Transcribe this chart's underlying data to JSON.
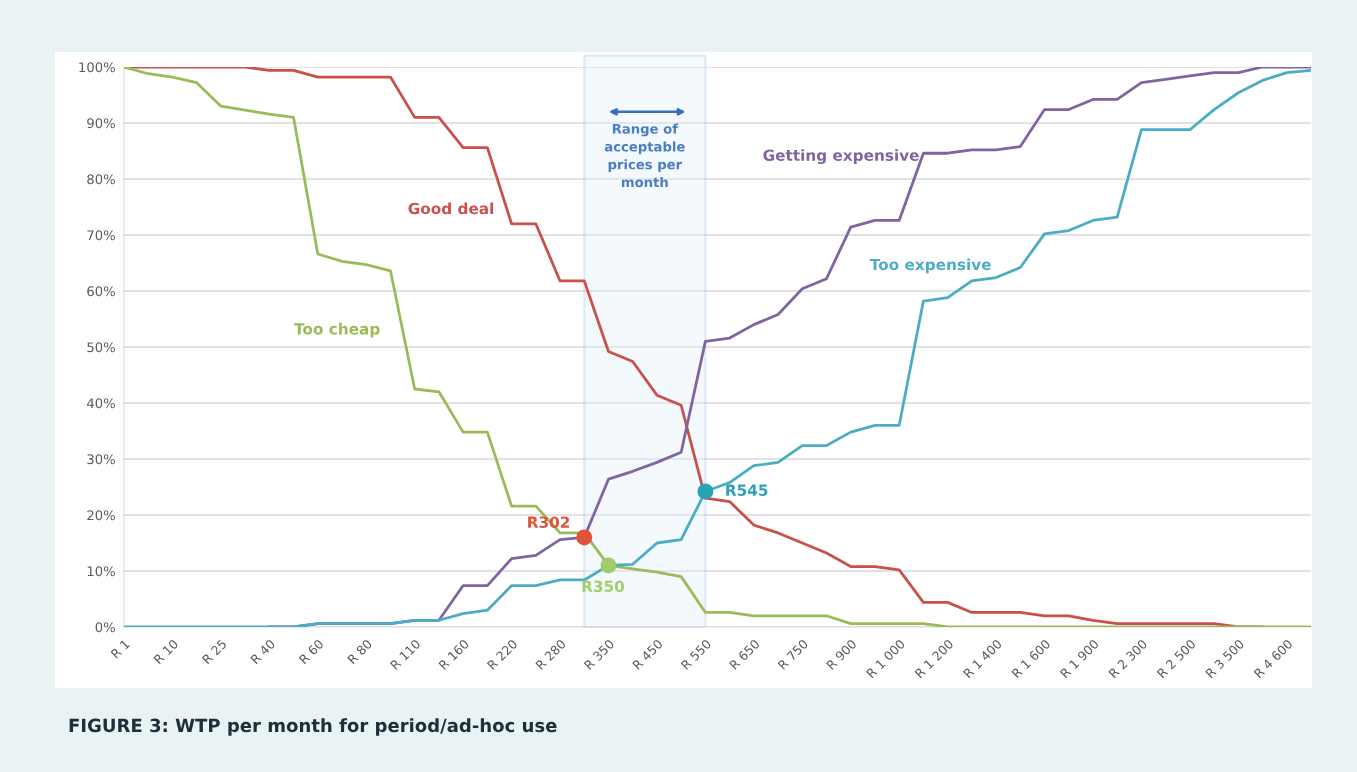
{
  "chart_data": {
    "type": "line",
    "title": "FIGURE 3: WTP per month for period/ad-hoc use",
    "categories": [
      "R 1",
      null,
      "R 10",
      null,
      "R 25",
      null,
      "R 40",
      null,
      "R 60",
      null,
      "R 80",
      null,
      "R 110",
      null,
      "R 160",
      null,
      "R 220",
      null,
      "R 280",
      null,
      "R 350",
      null,
      "R 450",
      null,
      "R 550",
      null,
      "R 650",
      null,
      "R 750",
      null,
      "R 900",
      null,
      "R 1 000",
      null,
      "R 1 200",
      null,
      "R 1 400",
      null,
      "R 1 600",
      null,
      "R 1 900",
      null,
      "R 2 300",
      null,
      "R 2 500",
      null,
      "R 3 500",
      null,
      "R 4 600",
      null
    ],
    "series": [
      {
        "name": "Good deal",
        "color": "#c9504b",
        "values": [
          100,
          100,
          100,
          100,
          100,
          100,
          99.4,
          99.4,
          98.2,
          98.2,
          98.2,
          98.2,
          91,
          91,
          85.6,
          85.6,
          72,
          72,
          61.8,
          61.8,
          49.2,
          47.4,
          41.4,
          39.6,
          23,
          22.4,
          18.2,
          16.8,
          15,
          13.2,
          10.8,
          10.8,
          10.2,
          4.4,
          4.4,
          2.6,
          2.6,
          2.6,
          2,
          2,
          1.2,
          0.6,
          0.6,
          0.6,
          0.6,
          0.6,
          0,
          0,
          null,
          null
        ]
      },
      {
        "name": "Too cheap",
        "color": "#9bbb59",
        "values": [
          100,
          98.8,
          98.2,
          97.2,
          93,
          92.3,
          91.6,
          91,
          66.6,
          65.3,
          64.7,
          63.6,
          42.5,
          42,
          34.8,
          34.8,
          21.6,
          21.6,
          16.8,
          16.8,
          11,
          10.4,
          9.8,
          9,
          2.6,
          2.6,
          2,
          2,
          2,
          2,
          0.6,
          0.6,
          0.6,
          0.6,
          0,
          0,
          0,
          0,
          0,
          0,
          0,
          0,
          0,
          0,
          0,
          0,
          0,
          0,
          0,
          0
        ]
      },
      {
        "name": "Getting expensive",
        "color": "#8064a2",
        "values": [
          null,
          null,
          null,
          null,
          null,
          null,
          0,
          0,
          0.6,
          0.6,
          0.6,
          0.6,
          1.2,
          1.2,
          7.4,
          7.4,
          12.2,
          12.8,
          15.6,
          16,
          26.4,
          27.8,
          29.4,
          31.2,
          51,
          51.6,
          54,
          55.8,
          60.4,
          62.2,
          71.4,
          72.6,
          72.6,
          84.6,
          84.6,
          85.2,
          85.2,
          85.8,
          92.4,
          92.4,
          94.2,
          94.2,
          97.2,
          97.8,
          98.4,
          99,
          99,
          100,
          100,
          100
        ]
      },
      {
        "name": "Too expensive",
        "color": "#4bacc6",
        "values": [
          0,
          0,
          0,
          0,
          0,
          0,
          0,
          0,
          0.6,
          0.6,
          0.6,
          0.6,
          1.2,
          1.2,
          2.4,
          3,
          7.4,
          7.4,
          8.4,
          8.4,
          11,
          11.2,
          15,
          15.6,
          24.2,
          25.8,
          28.8,
          29.4,
          32.4,
          32.4,
          34.8,
          36,
          36,
          58.2,
          58.8,
          61.8,
          62.4,
          64.2,
          70.2,
          70.8,
          72.6,
          73.2,
          88.8,
          88.8,
          88.8,
          92.4,
          95.4,
          97.6,
          99,
          99.4
        ]
      },
      {
        "type": "scatter",
        "marker": "circle",
        "values": [
          null,
          null,
          null,
          null,
          null,
          null,
          null,
          null,
          null,
          null,
          null,
          null,
          null,
          null,
          null,
          null,
          null,
          null,
          null,
          16,
          11,
          null,
          null,
          null,
          24.2,
          null,
          null,
          null,
          null,
          null,
          null,
          null,
          null,
          null,
          null,
          null,
          null,
          null,
          null,
          null,
          null,
          null,
          null,
          null,
          null,
          null,
          null,
          null,
          null,
          null
        ],
        "colors": [
          null,
          null,
          null,
          null,
          null,
          null,
          null,
          null,
          null,
          null,
          null,
          null,
          null,
          null,
          null,
          null,
          null,
          null,
          null,
          "#e0533a",
          "#9fcd6a",
          null,
          null,
          null,
          "#2ba3b5",
          null,
          null,
          null,
          null,
          null,
          null,
          null,
          null,
          null,
          null,
          null,
          null,
          null,
          null,
          null,
          null,
          null,
          null,
          null,
          null,
          null,
          null,
          null,
          null,
          null
        ],
        "value_labels": [
          null,
          null,
          null,
          null,
          null,
          null,
          null,
          null,
          null,
          null,
          null,
          null,
          null,
          null,
          null,
          null,
          null,
          null,
          null,
          "R302",
          "R350",
          null,
          null,
          null,
          "R545",
          null,
          null,
          null,
          null,
          null,
          null,
          null,
          null,
          null,
          null,
          null,
          null,
          null,
          null,
          null,
          null,
          null,
          null,
          null,
          null,
          null,
          null,
          null,
          null,
          null
        ]
      }
    ],
    "annotations": [
      "Range of\nacceptable\nprices per\nmonth"
    ],
    "ylim": [
      0,
      100
    ],
    "yticks": [
      {
        "value": 0,
        "label": "0%"
      },
      {
        "value": 10,
        "label": "10%"
      },
      {
        "value": 20,
        "label": "20%"
      },
      {
        "value": 30,
        "label": "30%"
      },
      {
        "value": 40,
        "label": "40%"
      },
      {
        "value": 50,
        "label": "50%"
      },
      {
        "value": 60,
        "label": "60%"
      },
      {
        "value": 70,
        "label": "70%"
      },
      {
        "value": 80,
        "label": "80%"
      },
      {
        "value": 90,
        "label": "90%"
      },
      {
        "value": 100,
        "label": "100%"
      }
    ],
    "grid": "y",
    "legend": false,
    "marker": "none",
    "line_style": "solid"
  }
}
